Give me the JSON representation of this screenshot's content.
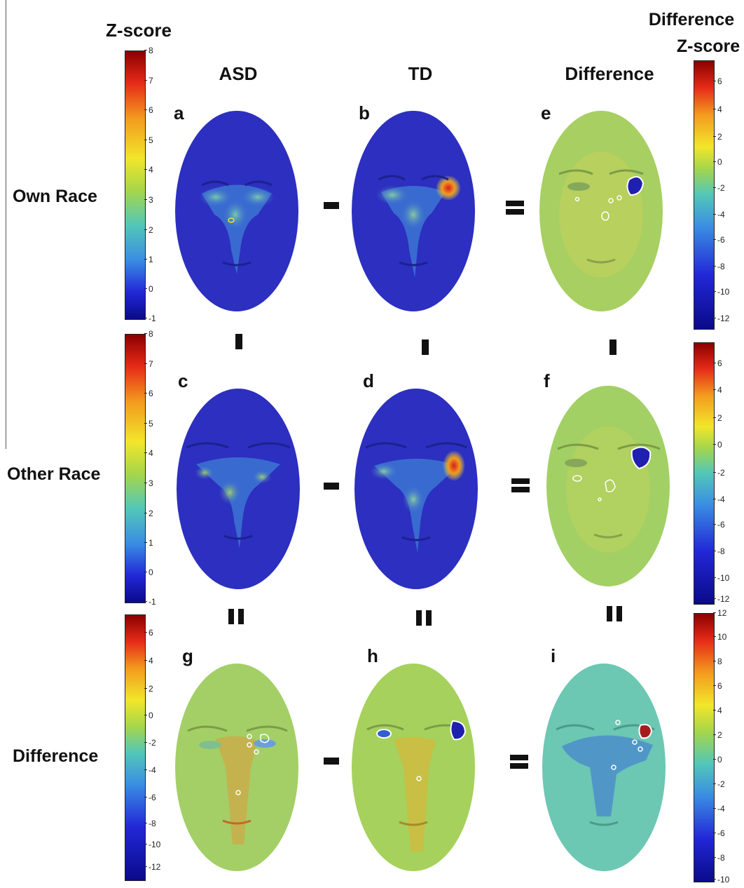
{
  "colorbars": {
    "left_title": "Z-score",
    "right_title_line1": "Difference",
    "right_title_line2": "Z-score",
    "zscore_ticks": [
      "8",
      "7",
      "6",
      "5",
      "4",
      "3",
      "2",
      "1",
      "0",
      "-1"
    ],
    "diff_ticks_top": [
      "6",
      "4",
      "2",
      "0",
      "-2",
      "-4",
      "-6",
      "-8",
      "-10",
      "-12"
    ],
    "diff_ticks_mid": [
      "6",
      "4",
      "2",
      "0",
      "-2",
      "-4",
      "-6",
      "-8",
      "-10",
      "-12"
    ],
    "diff_ticks_bottom_left": [
      "6",
      "4",
      "2",
      "0",
      "-2",
      "-4",
      "-6",
      "-8",
      "-10",
      "-12"
    ],
    "diff_ticks_bottom_right": [
      "12",
      "10",
      "8",
      "6",
      "4",
      "2",
      "0",
      "-2",
      "-4",
      "-6",
      "-8",
      "-10"
    ]
  },
  "columns": {
    "asd": "ASD",
    "td": "TD",
    "difference": "Difference"
  },
  "rows": {
    "own": "Own Race",
    "other": "Other Race",
    "difference": "Difference"
  },
  "panels": {
    "a": "a",
    "b": "b",
    "c": "c",
    "d": "d",
    "e": "e",
    "f": "f",
    "g": "g",
    "h": "h",
    "i": "i"
  },
  "operators": {
    "minus": "-",
    "equals": "=",
    "vminus": "I",
    "vequals": "II"
  },
  "colors": {
    "base_blue": "#2c2fbf",
    "base_green": "#9fcf5c",
    "base_cyan": "#6cc7b3",
    "hot_red": "#d21f1f"
  }
}
